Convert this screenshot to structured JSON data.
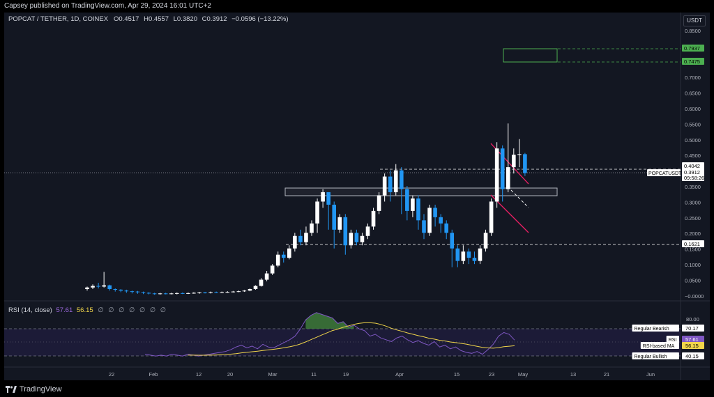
{
  "header": {
    "published_text": "Capsey published on TradingView.com, Apr 29, 2024 16:01 UTC+2"
  },
  "legend": {
    "symbol": "POPCAT / TETHER, 1D, COINEX",
    "open": "O0.4517",
    "high": "H0.4557",
    "low": "L0.3820",
    "close": "C0.3912",
    "change": "−0.0596 (−13.22%)"
  },
  "currency": "USDT",
  "price_axis": {
    "ticks": [
      "0.8500",
      "0.8000",
      "0.7500",
      "0.7000",
      "0.6500",
      "0.6000",
      "0.5500",
      "0.5000",
      "0.4500",
      "0.4000",
      "0.3500",
      "0.3000",
      "0.2500",
      "0.2000",
      "0.1500",
      "0.1000",
      "0.0500",
      "−0.0000"
    ],
    "labels": [
      {
        "text": "0.7937",
        "color": "#4caf50"
      },
      {
        "text": "0.7475",
        "color": "#4caf50"
      },
      {
        "text": "0.4042",
        "color": "#ffffff"
      },
      {
        "text": "0.3912",
        "color": "#ffffff"
      },
      {
        "text": "09:58:26",
        "color": "#ffffff"
      },
      {
        "text": "0.1621",
        "color": "#ffffff"
      }
    ],
    "symbol_tag": "POPCATUSDT"
  },
  "rsi": {
    "title": "RSI (14, close)",
    "rsi_value": "57.61",
    "ma_value": "56.15",
    "circles": "∅ ∅ ∅ ∅ ∅ ∅ ∅",
    "axis_ticks": [
      "80.00",
      "70.17",
      "57.61",
      "56.15",
      "40.15"
    ],
    "tags": [
      {
        "text": "Regular Bearish",
        "value": "70.17"
      },
      {
        "text": "RSI",
        "value": "57.61"
      },
      {
        "text": "RSI-based MA",
        "value": "56.15"
      },
      {
        "text": "Regular Bullish",
        "value": "40.15"
      }
    ]
  },
  "time_axis": [
    "22",
    "Feb",
    "12",
    "20",
    "Mar",
    "11",
    "19",
    "Apr",
    "15",
    "23",
    "May",
    "13",
    "21",
    "Jun"
  ],
  "footer": {
    "brand": "TradingView"
  },
  "colors": {
    "up": "#ffffff",
    "down": "#2196f3",
    "rsi": "#7e57c2",
    "ma": "#f0d54a",
    "bg": "#131722"
  }
}
